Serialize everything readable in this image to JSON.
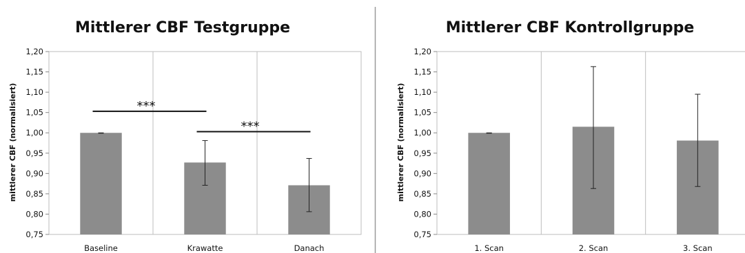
{
  "chart_data": [
    {
      "type": "bar",
      "title": "Mittlerer CBF Testgruppe",
      "ylabel": "mittlerer CBF (normalisiert)",
      "xlabel": "",
      "categories": [
        "Baseline",
        "Krawatte",
        "Danach"
      ],
      "values": [
        1.0,
        0.927,
        0.871
      ],
      "error_low": [
        0.999,
        0.871,
        0.806
      ],
      "error_high": [
        1.0,
        0.981,
        0.937
      ],
      "ylim": [
        0.75,
        1.2
      ],
      "yticks": [
        "0,75",
        "0,80",
        "0,85",
        "0,90",
        "0,95",
        "1,00",
        "1,05",
        "1,10",
        "1,15",
        "1,20"
      ],
      "grid": "vertical",
      "bar_color": "#8c8c8c",
      "annotations": [
        {
          "text": "***",
          "from": 0,
          "to": 1,
          "y": 1.053
        },
        {
          "text": "***",
          "from": 1,
          "to": 2,
          "y": 1.003
        }
      ]
    },
    {
      "type": "bar",
      "title": "Mittlerer CBF Kontrollgruppe",
      "ylabel": "mittlerer CBF (normalisiert)",
      "xlabel": "",
      "categories": [
        "1. Scan",
        "2. Scan",
        "3. Scan"
      ],
      "values": [
        1.0,
        1.015,
        0.981
      ],
      "error_low": [
        0.999,
        0.863,
        0.868
      ],
      "error_high": [
        1.0,
        1.163,
        1.095
      ],
      "ylim": [
        0.75,
        1.2
      ],
      "yticks": [
        "0,75",
        "0,80",
        "0,85",
        "0,90",
        "0,95",
        "1,00",
        "1,05",
        "1,10",
        "1,15",
        "1,20"
      ],
      "grid": "vertical",
      "bar_color": "#8c8c8c",
      "annotations": []
    }
  ]
}
